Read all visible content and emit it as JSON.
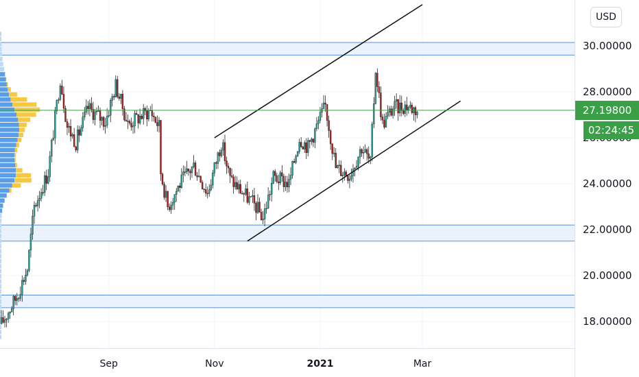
{
  "currency_button": "USD",
  "last_price_label": "27.19800",
  "countdown_label": "02:24:45",
  "colors": {
    "up": "#26a69a",
    "down": "#b71c1c",
    "last_price": "#3a9f46",
    "level_line": "#5b8fd6",
    "level_fill": "#e3eefb",
    "profile_blue": "#5b9ee8",
    "profile_yellow": "#f7c843",
    "grid": "#f0f3fa"
  },
  "chart_data": {
    "type": "candlestick",
    "title": "",
    "xlabel": "",
    "ylabel": "",
    "ylim": [
      16.9,
      31.2
    ],
    "grid": true,
    "y_ticks": [
      "18.00000",
      "20.00000",
      "22.00000",
      "24.00000",
      "26.00000",
      "28.00000",
      "30.00000"
    ],
    "x_ticks": [
      {
        "label": "Sep",
        "bold": false
      },
      {
        "label": "Nov",
        "bold": false
      },
      {
        "label": "2021",
        "bold": true
      },
      {
        "label": "Mar",
        "bold": false
      }
    ],
    "last_price": 27.198,
    "horizontal_levels": [
      {
        "name": "resistance-zone",
        "top": 30.15,
        "bottom": 29.6
      },
      {
        "name": "support-zone",
        "top": 22.2,
        "bottom": 21.5
      },
      {
        "name": "lower-zone",
        "top": 19.15,
        "bottom": 18.6
      }
    ],
    "trend_channel": {
      "upper": [
        [
          "2020-11-01",
          26.0
        ],
        [
          "2021-03-01",
          31.8
        ]
      ],
      "lower": [
        [
          "2020-11-20",
          21.5
        ],
        [
          "2021-03-23",
          27.6
        ]
      ]
    },
    "waypoints": [
      {
        "date": "2020-07-01",
        "price": 17.9
      },
      {
        "date": "2020-07-10",
        "price": 19.1
      },
      {
        "date": "2020-07-16",
        "price": 20.3
      },
      {
        "date": "2020-07-20",
        "price": 23.0
      },
      {
        "date": "2020-07-28",
        "price": 24.5
      },
      {
        "date": "2020-08-04",
        "price": 28.6
      },
      {
        "date": "2020-08-08",
        "price": 26.5
      },
      {
        "date": "2020-08-13",
        "price": 25.8
      },
      {
        "date": "2020-08-20",
        "price": 27.3
      },
      {
        "date": "2020-08-30",
        "price": 26.7
      },
      {
        "date": "2020-09-05",
        "price": 28.3
      },
      {
        "date": "2020-09-12",
        "price": 26.6
      },
      {
        "date": "2020-09-25",
        "price": 27.2
      },
      {
        "date": "2020-09-30",
        "price": 26.5
      },
      {
        "date": "2020-10-01",
        "price": 24.5
      },
      {
        "date": "2020-10-05",
        "price": 23.0
      },
      {
        "date": "2020-10-12",
        "price": 24.0
      },
      {
        "date": "2020-10-20",
        "price": 24.8
      },
      {
        "date": "2020-10-28",
        "price": 23.6
      },
      {
        "date": "2020-11-05",
        "price": 25.8
      },
      {
        "date": "2020-11-10",
        "price": 24.2
      },
      {
        "date": "2020-11-25",
        "price": 23.0
      },
      {
        "date": "2020-11-29",
        "price": 22.5
      },
      {
        "date": "2020-12-05",
        "price": 24.3
      },
      {
        "date": "2020-12-14",
        "price": 24.0
      },
      {
        "date": "2020-12-20",
        "price": 26.0
      },
      {
        "date": "2020-12-25",
        "price": 25.6
      },
      {
        "date": "2021-01-04",
        "price": 27.4
      },
      {
        "date": "2021-01-10",
        "price": 24.7
      },
      {
        "date": "2021-01-18",
        "price": 24.4
      },
      {
        "date": "2021-01-25",
        "price": 25.6
      },
      {
        "date": "2021-01-30",
        "price": 24.9
      },
      {
        "date": "2021-02-02",
        "price": 29.0
      },
      {
        "date": "2021-02-06",
        "price": 26.6
      },
      {
        "date": "2021-02-12",
        "price": 27.3
      },
      {
        "date": "2021-02-20",
        "price": 27.4
      },
      {
        "date": "2021-02-26",
        "price": 27.2
      }
    ]
  }
}
